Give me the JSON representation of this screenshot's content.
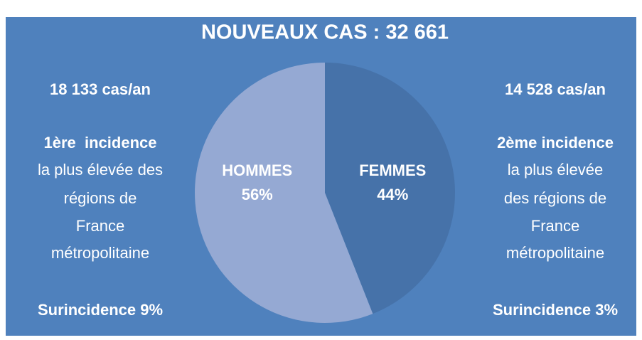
{
  "chart_data": {
    "type": "pie",
    "title": "NOUVEAUX CAS : 32 661",
    "categories": [
      "FEMMES",
      "HOMMES"
    ],
    "values": [
      44,
      56
    ],
    "value_labels": [
      "44%",
      "56%"
    ],
    "colors": [
      "#4672a9",
      "#95a9d3"
    ],
    "background": "#4f81bd",
    "annotations": {
      "left": [
        "18 133 cas/an",
        "1ère  incidence",
        "la plus élevée des",
        "régions de",
        "France",
        "métropolitaine",
        "Surincidence 9%"
      ],
      "right": [
        "14 528 cas/an",
        "2ème incidence",
        "la plus élevée",
        "des régions de",
        "France",
        "métropolitaine",
        "Surincidence 3%"
      ]
    }
  }
}
